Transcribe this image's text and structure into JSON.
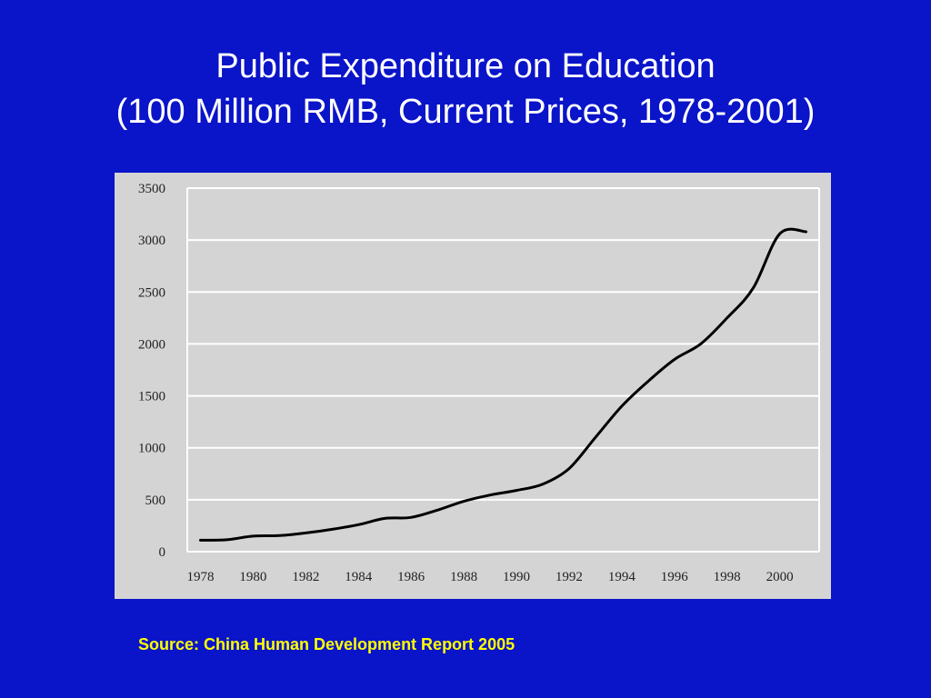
{
  "slide": {
    "title_line1": "Public Expenditure on Education",
    "title_line2": "(100 Million RMB, Current Prices, 1978-2001)",
    "source": "Source: China Human Development Report 2005"
  },
  "colors": {
    "background": "#0a14c8",
    "title": "#ffffff",
    "source": "#ffff00",
    "plot_background": "#d4d4d4",
    "gridline": "#ffffff",
    "line": "#000000"
  },
  "chart_data": {
    "type": "line",
    "title": "",
    "xlabel": "",
    "ylabel": "",
    "xlim": [
      1977.5,
      2001.5
    ],
    "ylim": [
      0,
      3500
    ],
    "x": [
      1978,
      1979,
      1980,
      1981,
      1982,
      1983,
      1984,
      1985,
      1986,
      1987,
      1988,
      1989,
      1990,
      1991,
      1992,
      1993,
      1994,
      1995,
      1996,
      1997,
      1998,
      1999,
      2000,
      2001
    ],
    "y_ticks": [
      0,
      500,
      1000,
      1500,
      2000,
      2500,
      3000,
      3500
    ],
    "x_ticks": [
      1978,
      1980,
      1982,
      1984,
      1986,
      1988,
      1990,
      1992,
      1994,
      1996,
      1998,
      2000
    ],
    "series": [
      {
        "values": [
          110,
          115,
          150,
          155,
          180,
          215,
          260,
          320,
          330,
          400,
          485,
          545,
          590,
          650,
          800,
          1100,
          1400,
          1640,
          1850,
          2000,
          2250,
          2540,
          3060,
          3080
        ]
      }
    ],
    "grid": true,
    "legend": "none"
  }
}
